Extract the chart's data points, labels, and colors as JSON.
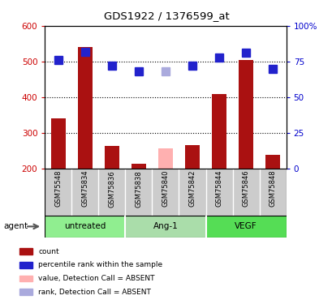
{
  "title": "GDS1922 / 1376599_at",
  "samples": [
    "GSM75548",
    "GSM75834",
    "GSM75836",
    "GSM75838",
    "GSM75840",
    "GSM75842",
    "GSM75844",
    "GSM75846",
    "GSM75848"
  ],
  "bar_values": [
    340,
    540,
    263,
    213,
    258,
    265,
    408,
    505,
    238
  ],
  "bar_absent": [
    false,
    false,
    false,
    false,
    true,
    false,
    false,
    false,
    false
  ],
  "rank_values": [
    76,
    82,
    72,
    68,
    68,
    72,
    78,
    81,
    70
  ],
  "rank_absent": [
    false,
    false,
    false,
    false,
    true,
    false,
    false,
    false,
    false
  ],
  "bar_color": "#AA1111",
  "bar_color_absent": "#FFB0B0",
  "rank_color": "#2222CC",
  "rank_color_absent": "#AAAADD",
  "ylim_left": [
    200,
    600
  ],
  "ylim_right": [
    0,
    100
  ],
  "yticks_left": [
    200,
    300,
    400,
    500,
    600
  ],
  "yticks_right": [
    0,
    25,
    50,
    75,
    100
  ],
  "ytick_labels_right": [
    "0",
    "25",
    "50",
    "75",
    "100%"
  ],
  "hlines": [
    300,
    400,
    500
  ],
  "group_starts": [
    0,
    3,
    6
  ],
  "group_ends": [
    3,
    6,
    9
  ],
  "group_labels": [
    "untreated",
    "Ang-1",
    "VEGF"
  ],
  "group_colors": [
    "#90EE90",
    "#AADDAA",
    "#55DD55"
  ],
  "sample_bg_color": "#CCCCCC",
  "agent_label": "agent",
  "bar_width": 0.55,
  "rank_marker_size": 7,
  "legend_colors": [
    "#AA1111",
    "#2222CC",
    "#FFB0B0",
    "#AAAADD"
  ],
  "legend_labels": [
    "count",
    "percentile rank within the sample",
    "value, Detection Call = ABSENT",
    "rank, Detection Call = ABSENT"
  ]
}
